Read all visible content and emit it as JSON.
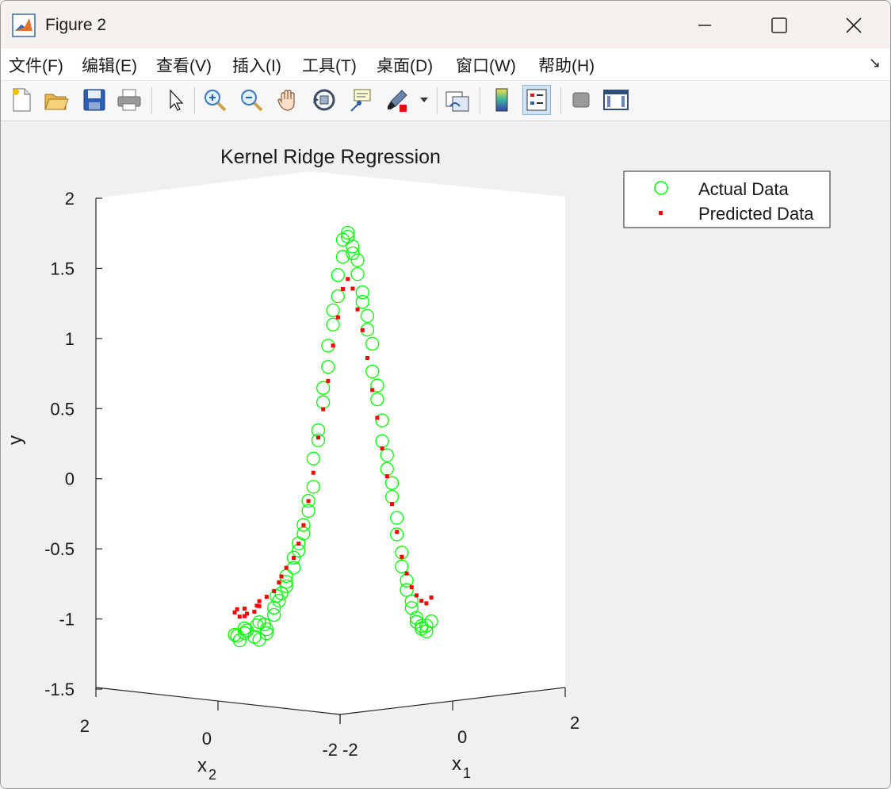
{
  "window": {
    "title": "Figure 2"
  },
  "menu": {
    "items": [
      "文件(F)",
      "编辑(E)",
      "查看(V)",
      "插入(I)",
      "工具(T)",
      "桌面(D)",
      "窗口(W)",
      "帮助(H)"
    ],
    "overflow_glyph": "↘"
  },
  "toolbar": {
    "icons": [
      "new-figure-icon",
      "open-file-icon",
      "save-icon",
      "print-icon",
      "select-pointer-icon",
      "zoom-in-icon",
      "zoom-out-icon",
      "pan-hand-icon",
      "rotate-3d-icon",
      "data-cursor-icon",
      "brush-icon",
      "link-plot-icon",
      "colorbar-icon",
      "legend-icon",
      "hide-plot-tools-icon",
      "show-plot-tools-icon"
    ]
  },
  "chart_data": {
    "type": "scatter",
    "title": "Kernel Ridge Regression",
    "ylabel": "y",
    "xlabel_base": "x",
    "xlabel_sub": "1",
    "zlabel_base": "x",
    "zlabel_sub": "2",
    "view": "3-D, rotated",
    "ylim": [
      -1.5,
      2
    ],
    "y_ticks": [
      "2",
      "1.5",
      "1",
      "0.5",
      "0",
      "-0.5",
      "-1",
      "-1.5"
    ],
    "x1_ticks": [
      "-2",
      "0",
      "2"
    ],
    "x2_ticks": [
      "2",
      "0",
      "-2"
    ],
    "legend": {
      "position": "top-right",
      "entries": [
        "Actual Data",
        "Predicted Data"
      ]
    },
    "grid": false,
    "series": [
      {
        "name": "Actual Data",
        "marker": "open-circle",
        "color": "#00ff00",
        "points": [
          [
            1.95,
            0.0,
            -1.08
          ],
          [
            1.9,
            0.05,
            -1.12
          ],
          [
            1.85,
            -0.05,
            -1.09
          ],
          [
            1.8,
            0.1,
            -1.05
          ],
          [
            1.75,
            0.0,
            -1.07
          ],
          [
            1.65,
            -0.1,
            -1.04
          ],
          [
            1.6,
            0.05,
            -1.1
          ],
          [
            1.55,
            0.1,
            -1.12
          ],
          [
            1.5,
            0.0,
            -1.02
          ],
          [
            1.4,
            -0.05,
            -1.0
          ],
          [
            1.35,
            0.05,
            -1.05
          ],
          [
            1.3,
            0.0,
            -1.08
          ],
          [
            1.25,
            -0.1,
            -1.02
          ],
          [
            1.2,
            0.05,
            -0.95
          ],
          [
            1.15,
            0.0,
            -0.9
          ],
          [
            1.1,
            0.05,
            -0.85
          ],
          [
            1.05,
            -0.05,
            -0.82
          ],
          [
            1.0,
            0.0,
            -0.8
          ],
          [
            0.95,
            0.05,
            -0.75
          ],
          [
            0.9,
            0.0,
            -0.72
          ],
          [
            0.85,
            -0.05,
            -0.68
          ],
          [
            0.8,
            0.05,
            -0.62
          ],
          [
            0.75,
            0.0,
            -0.55
          ],
          [
            0.7,
            0.05,
            -0.5
          ],
          [
            0.65,
            0.0,
            -0.45
          ],
          [
            0.6,
            0.05,
            -0.38
          ],
          [
            0.55,
            0.0,
            -0.32
          ],
          [
            0.5,
            0.05,
            -0.22
          ],
          [
            0.45,
            0.0,
            -0.15
          ],
          [
            0.4,
            0.05,
            -0.05
          ],
          [
            0.35,
            0.0,
            0.15
          ],
          [
            0.3,
            0.05,
            0.28
          ],
          [
            0.25,
            0.0,
            0.35
          ],
          [
            0.2,
            0.05,
            0.55
          ],
          [
            0.15,
            0.0,
            0.65
          ],
          [
            0.1,
            0.05,
            0.8
          ],
          [
            0.05,
            0.0,
            0.95
          ],
          [
            0.0,
            0.05,
            1.1
          ],
          [
            -0.05,
            0.0,
            1.2
          ],
          [
            -0.1,
            0.05,
            1.3
          ],
          [
            -0.15,
            0.0,
            1.45
          ],
          [
            -0.2,
            0.05,
            1.58
          ],
          [
            -0.25,
            0.0,
            1.7
          ],
          [
            -0.3,
            0.05,
            1.75
          ],
          [
            -0.35,
            0.0,
            1.72
          ],
          [
            -0.4,
            0.05,
            1.65
          ],
          [
            -0.45,
            0.0,
            1.6
          ],
          [
            -0.5,
            0.05,
            1.55
          ],
          [
            -0.55,
            0.0,
            1.45
          ],
          [
            -0.6,
            0.05,
            1.32
          ],
          [
            -0.65,
            0.0,
            1.25
          ],
          [
            -0.7,
            0.05,
            1.15
          ],
          [
            -0.75,
            0.0,
            1.05
          ],
          [
            -0.8,
            0.05,
            0.95
          ],
          [
            -0.85,
            0.0,
            0.75
          ],
          [
            -0.9,
            0.05,
            0.65
          ],
          [
            -0.95,
            0.0,
            0.55
          ],
          [
            -1.0,
            0.05,
            0.4
          ],
          [
            -1.05,
            0.0,
            0.25
          ],
          [
            -1.1,
            0.05,
            0.15
          ],
          [
            -1.15,
            0.0,
            0.05
          ],
          [
            -1.2,
            0.05,
            -0.05
          ],
          [
            -1.25,
            0.0,
            -0.15
          ],
          [
            -1.3,
            0.05,
            -0.3
          ],
          [
            -1.35,
            0.0,
            -0.42
          ],
          [
            -1.4,
            0.05,
            -0.55
          ],
          [
            -1.45,
            0.0,
            -0.65
          ],
          [
            -1.5,
            0.05,
            -0.75
          ],
          [
            -1.55,
            0.0,
            -0.82
          ],
          [
            -1.6,
            0.05,
            -0.9
          ],
          [
            -1.65,
            0.0,
            -0.95
          ],
          [
            -1.7,
            0.05,
            -1.02
          ],
          [
            -1.75,
            0.0,
            -1.05
          ],
          [
            -1.8,
            0.05,
            -1.08
          ],
          [
            -1.85,
            0.0,
            -1.1
          ],
          [
            -1.9,
            0.05,
            -1.12
          ],
          [
            -1.95,
            0.0,
            -1.08
          ],
          [
            -2.0,
            0.05,
            -1.05
          ]
        ]
      },
      {
        "name": "Predicted Data",
        "marker": "filled-square",
        "color": "#ff0000",
        "points": [
          [
            1.95,
            0.0,
            -0.92
          ],
          [
            1.9,
            0.05,
            -0.95
          ],
          [
            1.85,
            -0.05,
            -0.9
          ],
          [
            1.8,
            0.1,
            -0.93
          ],
          [
            1.75,
            0.0,
            -0.95
          ],
          [
            1.65,
            -0.1,
            -0.9
          ],
          [
            1.6,
            0.05,
            -0.92
          ],
          [
            1.55,
            0.1,
            -0.88
          ],
          [
            1.5,
            0.0,
            -0.88
          ],
          [
            1.4,
            -0.05,
            -0.85
          ],
          [
            1.3,
            0.0,
            -0.82
          ],
          [
            1.2,
            0.05,
            -0.78
          ],
          [
            1.1,
            0.05,
            -0.72
          ],
          [
            1.0,
            0.0,
            -0.68
          ],
          [
            0.9,
            0.0,
            -0.62
          ],
          [
            0.8,
            0.05,
            -0.55
          ],
          [
            0.7,
            0.05,
            -0.45
          ],
          [
            0.6,
            0.05,
            -0.32
          ],
          [
            0.5,
            0.05,
            -0.15
          ],
          [
            0.4,
            0.05,
            0.05
          ],
          [
            0.3,
            0.05,
            0.3
          ],
          [
            0.2,
            0.05,
            0.5
          ],
          [
            0.1,
            0.05,
            0.7
          ],
          [
            0.0,
            0.05,
            0.95
          ],
          [
            -0.1,
            0.05,
            1.15
          ],
          [
            -0.2,
            0.05,
            1.35
          ],
          [
            -0.3,
            0.05,
            1.42
          ],
          [
            -0.4,
            0.05,
            1.35
          ],
          [
            -0.5,
            0.05,
            1.2
          ],
          [
            -0.6,
            0.05,
            1.05
          ],
          [
            -0.7,
            0.05,
            0.85
          ],
          [
            -0.8,
            0.05,
            0.62
          ],
          [
            -0.9,
            0.05,
            0.42
          ],
          [
            -1.0,
            0.05,
            0.2
          ],
          [
            -1.1,
            0.05,
            0.0
          ],
          [
            -1.2,
            0.05,
            -0.2
          ],
          [
            -1.3,
            0.05,
            -0.4
          ],
          [
            -1.4,
            0.05,
            -0.58
          ],
          [
            -1.5,
            0.05,
            -0.7
          ],
          [
            -1.6,
            0.05,
            -0.8
          ],
          [
            -1.7,
            0.05,
            -0.86
          ],
          [
            -1.8,
            0.05,
            -0.9
          ],
          [
            -1.9,
            0.05,
            -0.92
          ],
          [
            -2.0,
            0.05,
            -0.88
          ]
        ]
      }
    ]
  }
}
